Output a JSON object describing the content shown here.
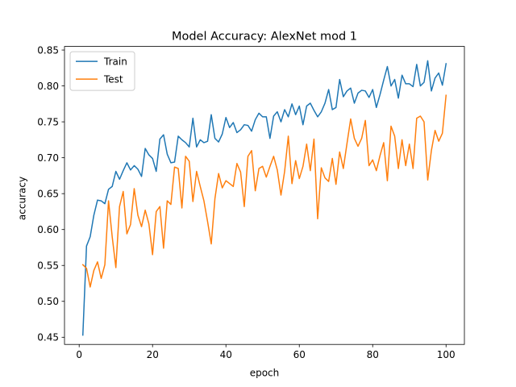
{
  "chart_data": {
    "type": "line",
    "title": "Model Accuracy: AlexNet mod 1",
    "xlabel": "epoch",
    "ylabel": "accuracy",
    "xlim": [
      -4,
      105
    ],
    "ylim": [
      0.44,
      0.855
    ],
    "xticks": [
      0,
      20,
      40,
      60,
      80,
      100
    ],
    "yticks": [
      0.45,
      0.5,
      0.55,
      0.6,
      0.65,
      0.7,
      0.75,
      0.8,
      0.85
    ],
    "grid": false,
    "legend_position": "top-left",
    "colors": {
      "Train": "#1f77b4",
      "Test": "#ff7f0e"
    },
    "x": [
      1,
      2,
      3,
      4,
      5,
      6,
      7,
      8,
      9,
      10,
      11,
      12,
      13,
      14,
      15,
      16,
      17,
      18,
      19,
      20,
      21,
      22,
      23,
      24,
      25,
      26,
      27,
      28,
      29,
      30,
      31,
      32,
      33,
      34,
      35,
      36,
      37,
      38,
      39,
      40,
      41,
      42,
      43,
      44,
      45,
      46,
      47,
      48,
      49,
      50,
      51,
      52,
      53,
      54,
      55,
      56,
      57,
      58,
      59,
      60,
      61,
      62,
      63,
      64,
      65,
      66,
      67,
      68,
      69,
      70,
      71,
      72,
      73,
      74,
      75,
      76,
      77,
      78,
      79,
      80,
      81,
      82,
      83,
      84,
      85,
      86,
      87,
      88,
      89,
      90,
      91,
      92,
      93,
      94,
      95,
      96,
      97,
      98,
      99,
      100
    ],
    "series": [
      {
        "name": "Train",
        "values": [
          0.453,
          0.577,
          0.59,
          0.62,
          0.641,
          0.64,
          0.636,
          0.656,
          0.66,
          0.681,
          0.67,
          0.682,
          0.693,
          0.683,
          0.689,
          0.684,
          0.674,
          0.713,
          0.704,
          0.699,
          0.681,
          0.726,
          0.732,
          0.705,
          0.693,
          0.694,
          0.73,
          0.725,
          0.721,
          0.715,
          0.755,
          0.715,
          0.725,
          0.721,
          0.723,
          0.76,
          0.727,
          0.722,
          0.733,
          0.756,
          0.742,
          0.749,
          0.735,
          0.739,
          0.746,
          0.745,
          0.737,
          0.753,
          0.762,
          0.757,
          0.757,
          0.727,
          0.758,
          0.764,
          0.75,
          0.767,
          0.757,
          0.775,
          0.76,
          0.772,
          0.746,
          0.772,
          0.776,
          0.766,
          0.757,
          0.764,
          0.776,
          0.795,
          0.767,
          0.77,
          0.809,
          0.785,
          0.793,
          0.797,
          0.776,
          0.79,
          0.794,
          0.793,
          0.784,
          0.795,
          0.77,
          0.788,
          0.808,
          0.827,
          0.8,
          0.809,
          0.783,
          0.815,
          0.803,
          0.803,
          0.799,
          0.83,
          0.8,
          0.805,
          0.835,
          0.793,
          0.811,
          0.818,
          0.801,
          0.831
        ]
      },
      {
        "name": "Test",
        "values": [
          0.551,
          0.546,
          0.52,
          0.543,
          0.555,
          0.532,
          0.551,
          0.64,
          0.59,
          0.547,
          0.632,
          0.653,
          0.594,
          0.607,
          0.657,
          0.62,
          0.604,
          0.627,
          0.608,
          0.565,
          0.625,
          0.632,
          0.574,
          0.64,
          0.635,
          0.687,
          0.685,
          0.63,
          0.702,
          0.695,
          0.639,
          0.681,
          0.66,
          0.64,
          0.611,
          0.58,
          0.643,
          0.678,
          0.658,
          0.668,
          0.664,
          0.66,
          0.692,
          0.68,
          0.632,
          0.702,
          0.71,
          0.654,
          0.685,
          0.688,
          0.673,
          0.688,
          0.702,
          0.683,
          0.648,
          0.681,
          0.73,
          0.664,
          0.696,
          0.671,
          0.688,
          0.719,
          0.682,
          0.726,
          0.615,
          0.686,
          0.672,
          0.667,
          0.699,
          0.663,
          0.708,
          0.685,
          0.72,
          0.754,
          0.727,
          0.716,
          0.727,
          0.752,
          0.689,
          0.697,
          0.682,
          0.703,
          0.721,
          0.668,
          0.744,
          0.73,
          0.685,
          0.725,
          0.689,
          0.719,
          0.685,
          0.755,
          0.758,
          0.75,
          0.669,
          0.71,
          0.738,
          0.723,
          0.734,
          0.787
        ]
      }
    ]
  }
}
